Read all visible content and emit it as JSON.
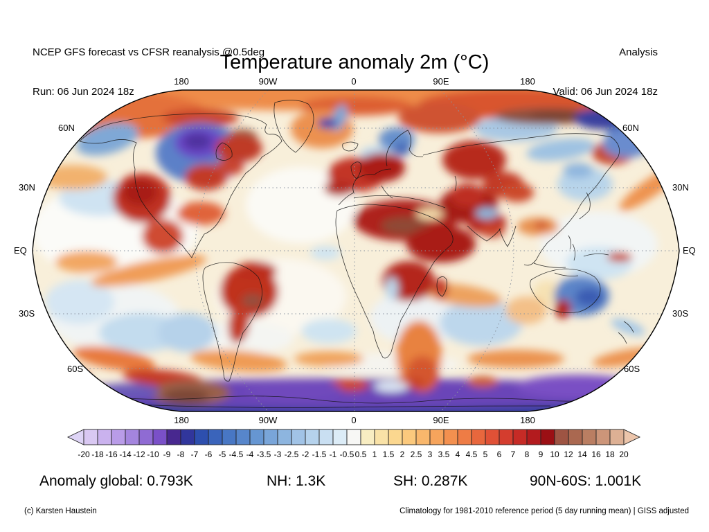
{
  "header": {
    "left_line1": "NCEP GFS forecast vs CFSR reanalysis @0.5deg",
    "left_line2": "Run: 06 Jun 2024 18z",
    "right_line1": "Analysis",
    "right_line2": "Valid: 06 Jun 2024 18z"
  },
  "title": "Temperature anomaly 2m (°C)",
  "map": {
    "lon_labels_top": [
      "180",
      "90W",
      "0",
      "90E",
      "180"
    ],
    "lon_labels_bottom": [
      "180",
      "90W",
      "0",
      "90E",
      "180"
    ],
    "lat_labels_left": [
      "60N",
      "30N",
      "EQ",
      "30S",
      "60S"
    ],
    "lat_labels_right": [
      "60N",
      "30N",
      "EQ",
      "30S",
      "60S"
    ],
    "base_color": "#f8efda",
    "field_blobs": [
      [
        470,
        8,
        450,
        24,
        0,
        "#ee8c4a"
      ],
      [
        470,
        25,
        80,
        14,
        0,
        "#dd5e31"
      ],
      [
        140,
        38,
        115,
        34,
        0,
        "#e4713a"
      ],
      [
        700,
        22,
        140,
        22,
        0,
        "#d9552f"
      ],
      [
        470,
        465,
        460,
        16,
        0,
        "#2e3f9d"
      ],
      [
        470,
        440,
        440,
        22,
        0,
        "#6a44b8"
      ],
      [
        120,
        205,
        120,
        68,
        0,
        "#fbfbf8"
      ],
      [
        390,
        168,
        80,
        55,
        0,
        "#fbfaf5"
      ],
      [
        360,
        300,
        95,
        55,
        0,
        "#fbf8f0"
      ],
      [
        120,
        330,
        95,
        48,
        0,
        "#f1f4f4"
      ],
      [
        820,
        225,
        85,
        48,
        0,
        "#f2f5f5"
      ],
      [
        560,
        330,
        70,
        40,
        0,
        "#edf2f4"
      ],
      [
        300,
        360,
        80,
        25,
        0,
        "#f4f5f2"
      ],
      [
        520,
        398,
        100,
        16,
        0,
        "#f5f4ef"
      ],
      [
        100,
        158,
        60,
        26,
        0,
        "#cfe3f2"
      ],
      [
        70,
        308,
        50,
        32,
        0,
        "#d5e6f3"
      ],
      [
        160,
        352,
        62,
        28,
        0,
        "#c3dcee"
      ],
      [
        650,
        338,
        60,
        33,
        0,
        "#bdd7ec"
      ],
      [
        820,
        252,
        48,
        24,
        0,
        "#cfe4f2"
      ],
      [
        700,
        58,
        60,
        18,
        0,
        "#a9c8e4"
      ],
      [
        765,
        88,
        50,
        15,
        -8,
        "#9fc2e2"
      ],
      [
        225,
        352,
        42,
        28,
        0,
        "#b6d2ea"
      ],
      [
        430,
        350,
        40,
        18,
        0,
        "#cfe4f1"
      ],
      [
        425,
        237,
        22,
        10,
        0,
        "#cfe4f1"
      ],
      [
        500,
        95,
        25,
        12,
        0,
        "#bcd8ee"
      ],
      [
        60,
        128,
        50,
        18,
        0,
        "#f2b26e"
      ],
      [
        170,
        263,
        85,
        15,
        -12,
        "#f09d58"
      ],
      [
        80,
        250,
        45,
        16,
        0,
        "#f2a764"
      ],
      [
        895,
        143,
        55,
        13,
        -35,
        "#ee9350"
      ],
      [
        620,
        298,
        60,
        15,
        8,
        "#eda25e"
      ],
      [
        300,
        393,
        70,
        15,
        5,
        "#ef9b55"
      ],
      [
        430,
        390,
        50,
        11,
        0,
        "#f0a35c"
      ],
      [
        700,
        390,
        70,
        13,
        0,
        "#eb9350"
      ],
      [
        860,
        388,
        50,
        11,
        -10,
        "#ec9350"
      ],
      [
        120,
        390,
        60,
        15,
        10,
        "#e87a3c"
      ],
      [
        45,
        415,
        40,
        12,
        0,
        "#d85a30"
      ],
      [
        745,
        295,
        20,
        18,
        0,
        "#f6e2b4"
      ],
      [
        715,
        320,
        30,
        20,
        0,
        "#f3c088"
      ],
      [
        560,
        385,
        33,
        50,
        0,
        "#e8823f"
      ],
      [
        565,
        412,
        24,
        26,
        0,
        "#d4572f"
      ],
      [
        190,
        418,
        58,
        12,
        5,
        "#c43a26"
      ],
      [
        460,
        428,
        28,
        9,
        0,
        "#cc4428"
      ],
      [
        548,
        425,
        22,
        8,
        0,
        "#c84228"
      ],
      [
        652,
        423,
        22,
        8,
        0,
        "#cc5a30"
      ],
      [
        245,
        42,
        55,
        13,
        0,
        "#cb452a"
      ],
      [
        590,
        42,
        60,
        22,
        0,
        "#cf5230"
      ],
      [
        745,
        40,
        75,
        12,
        0,
        "#8a5140"
      ],
      [
        762,
        38,
        42,
        8,
        0,
        "#7a4536"
      ],
      [
        840,
        93,
        30,
        17,
        0,
        "#c64a2c"
      ],
      [
        825,
        43,
        40,
        16,
        0,
        "#3a3f9f"
      ],
      [
        857,
        65,
        26,
        13,
        0,
        "#5577c2"
      ],
      [
        860,
        80,
        35,
        20,
        0,
        "#6a8cce"
      ],
      [
        110,
        73,
        46,
        21,
        -15,
        "#7fa8d6"
      ],
      [
        245,
        93,
        65,
        44,
        0,
        "#5b80c8"
      ],
      [
        243,
        78,
        36,
        23,
        0,
        "#6a46c6"
      ],
      [
        240,
        76,
        20,
        12,
        0,
        "#50309f"
      ],
      [
        305,
        71,
        22,
        13,
        0,
        "#9a6148"
      ],
      [
        300,
        86,
        34,
        20,
        0,
        "#bf3a28"
      ],
      [
        160,
        158,
        42,
        36,
        0,
        "#bf3122"
      ],
      [
        157,
        150,
        25,
        19,
        0,
        "#a81f19"
      ],
      [
        190,
        213,
        30,
        25,
        0,
        "#cf4c30"
      ],
      [
        245,
        180,
        35,
        17,
        0,
        "#e0643a"
      ],
      [
        252,
        128,
        30,
        19,
        0,
        "#c23a26"
      ],
      [
        287,
        113,
        20,
        12,
        0,
        "#c84430"
      ],
      [
        420,
        58,
        45,
        28,
        0,
        "#ec9150"
      ],
      [
        445,
        42,
        10,
        20,
        20,
        "#7fa6d4"
      ],
      [
        428,
        50,
        14,
        8,
        0,
        "#3c4aac"
      ],
      [
        528,
        73,
        26,
        17,
        0,
        "#6690cc"
      ],
      [
        535,
        87,
        13,
        10,
        0,
        "#4a6cba"
      ],
      [
        470,
        124,
        42,
        25,
        0,
        "#c33625"
      ],
      [
        506,
        114,
        34,
        21,
        0,
        "#ab1d18"
      ],
      [
        445,
        144,
        22,
        11,
        0,
        "#b32a20"
      ],
      [
        540,
        190,
        75,
        30,
        0,
        "#ae211b"
      ],
      [
        540,
        198,
        35,
        13,
        0,
        "#8f4936"
      ],
      [
        592,
        224,
        50,
        27,
        0,
        "#a91b16"
      ],
      [
        576,
        181,
        20,
        8,
        0,
        "#f4dfae"
      ],
      [
        632,
        168,
        42,
        27,
        0,
        "#a51c17"
      ],
      [
        658,
        194,
        28,
        17,
        0,
        "#b5261e"
      ],
      [
        640,
        103,
        46,
        28,
        0,
        "#b72a1e"
      ],
      [
        682,
        139,
        30,
        19,
        0,
        "#c23a28"
      ],
      [
        702,
        150,
        24,
        14,
        0,
        "#cc4a2c"
      ],
      [
        630,
        154,
        25,
        17,
        0,
        "#bd2d20"
      ],
      [
        658,
        180,
        16,
        8,
        0,
        "#8cb8de"
      ],
      [
        666,
        204,
        18,
        11,
        0,
        "#c8432a"
      ],
      [
        732,
        199,
        30,
        13,
        0,
        "#e89150"
      ],
      [
        737,
        197,
        10,
        5,
        0,
        "#cc4428"
      ],
      [
        800,
        138,
        40,
        24,
        0,
        "#b8d4ea"
      ],
      [
        790,
        118,
        22,
        11,
        0,
        "#8fb6de"
      ],
      [
        850,
        243,
        18,
        7,
        0,
        "#cc4428"
      ],
      [
        315,
        293,
        42,
        38,
        0,
        "#c0301f"
      ],
      [
        325,
        263,
        30,
        13,
        0,
        "#bc2d1e"
      ],
      [
        320,
        306,
        16,
        10,
        0,
        "#95503c"
      ],
      [
        300,
        340,
        15,
        28,
        8,
        "#c23a26"
      ],
      [
        545,
        278,
        38,
        29,
        0,
        "#b4251e"
      ],
      [
        592,
        289,
        10,
        15,
        0,
        "#c43526"
      ],
      [
        521,
        289,
        9,
        17,
        0,
        "#bcd8ec"
      ],
      [
        795,
        299,
        40,
        29,
        0,
        "#5b84c8"
      ],
      [
        806,
        301,
        20,
        13,
        0,
        "#3a5cb2"
      ],
      [
        768,
        318,
        12,
        14,
        0,
        "#b02218"
      ],
      [
        862,
        344,
        26,
        9,
        20,
        "#a6c8e6"
      ],
      [
        230,
        439,
        58,
        18,
        0,
        "#9a6048"
      ],
      [
        224,
        444,
        33,
        11,
        0,
        "#7c4634"
      ],
      [
        790,
        430,
        90,
        17,
        0,
        "#7a50c4"
      ],
      [
        380,
        436,
        70,
        15,
        0,
        "#6f48bc"
      ],
      [
        140,
        436,
        45,
        11,
        0,
        "#6a5ab8"
      ],
      [
        520,
        430,
        25,
        8,
        0,
        "#dde8f4"
      ]
    ]
  },
  "chart_data": {
    "type": "heatmap",
    "title": "Temperature anomaly 2m (°C)",
    "units": "°C",
    "projection": "robinson-world",
    "colorbar": {
      "ticks": [
        "-20",
        "-18",
        "-16",
        "-14",
        "-12",
        "-10",
        "-9",
        "-8",
        "-7",
        "-6",
        "-5",
        "-4.5",
        "-4",
        "-3.5",
        "-3",
        "-2.5",
        "-2",
        "-1.5",
        "-1",
        "-0.5",
        "0.5",
        "1",
        "1.5",
        "2",
        "2.5",
        "3",
        "3.5",
        "4",
        "4.5",
        "5",
        "6",
        "7",
        "8",
        "9",
        "10",
        "12",
        "14",
        "16",
        "18",
        "20"
      ],
      "cell_colors": [
        "#d9c8f2",
        "#cab2ee",
        "#b99ce8",
        "#a485de",
        "#8f6bd3",
        "#7a50c8",
        "#48288f",
        "#31369c",
        "#2d4fae",
        "#3a64bb",
        "#4877c4",
        "#5786cb",
        "#6696d2",
        "#79a5d9",
        "#8db5df",
        "#a1c3e6",
        "#b5d2ec",
        "#c9dff2",
        "#dcecf7",
        "#f7f7f5",
        "#f8edc2",
        "#f9e2a7",
        "#fbd78f",
        "#fbc97d",
        "#f9b76c",
        "#f6a45c",
        "#f3904f",
        "#ee7c45",
        "#e8673d",
        "#e05136",
        "#d43d2e",
        "#c62b26",
        "#b31b1e",
        "#9b0f14",
        "#9e5443",
        "#aa6850",
        "#ba7e62",
        "#cc9579",
        "#ddb094"
      ],
      "left_arrow_color": "#ded4f6",
      "right_arrow_color": "#ecc5ab"
    },
    "stats_row": [
      "Anomaly global: 0.793K",
      "NH: 1.3K",
      "SH: 0.287K",
      "90N-60S: 1.001K"
    ]
  },
  "footer": {
    "left": "(c) Karsten Haustein",
    "right": "Climatology for 1981-2010 reference period (5 day running mean) | GISS adjusted"
  }
}
